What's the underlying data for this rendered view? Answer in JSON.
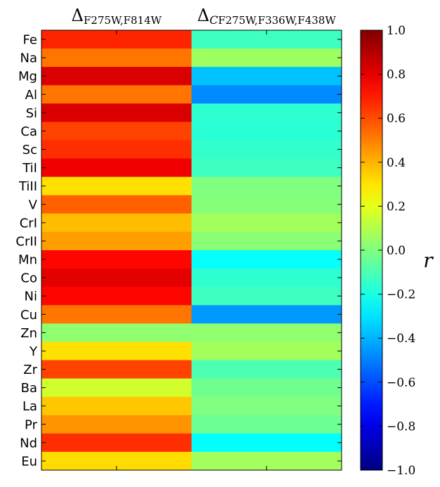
{
  "chart_data": {
    "type": "heatmap",
    "columns": [
      {
        "symbol": "Δ",
        "subscript": "F275W,F814W",
        "italic_prefix": ""
      },
      {
        "symbol": "Δ",
        "subscript": "F275W,F336W,F438W",
        "italic_prefix": "C"
      }
    ],
    "rows": [
      "Fe",
      "Na",
      "Mg",
      "Al",
      "Si",
      "Ca",
      "Sc",
      "TiI",
      "TiII",
      "V",
      "CrI",
      "CrII",
      "Mn",
      "Co",
      "Ni",
      "Cu",
      "Zn",
      "Y",
      "Zr",
      "Ba",
      "La",
      "Pr",
      "Nd",
      "Eu"
    ],
    "values": [
      [
        0.68,
        -0.13
      ],
      [
        0.52,
        0.06
      ],
      [
        0.82,
        -0.37
      ],
      [
        0.52,
        -0.48
      ],
      [
        0.82,
        -0.16
      ],
      [
        0.62,
        -0.17
      ],
      [
        0.66,
        -0.15
      ],
      [
        0.78,
        -0.13
      ],
      [
        0.31,
        0.0
      ],
      [
        0.56,
        0.01
      ],
      [
        0.38,
        0.07
      ],
      [
        0.44,
        0.02
      ],
      [
        0.74,
        -0.24
      ],
      [
        0.8,
        -0.16
      ],
      [
        0.74,
        -0.13
      ],
      [
        0.52,
        -0.45
      ],
      [
        0.03,
        0.03
      ],
      [
        0.31,
        0.07
      ],
      [
        0.62,
        -0.1
      ],
      [
        0.16,
        -0.03
      ],
      [
        0.36,
        0.0
      ],
      [
        0.46,
        -0.04
      ],
      [
        0.66,
        -0.25
      ],
      [
        0.32,
        0.07
      ]
    ],
    "colorbar": {
      "label": "r",
      "range": [
        -1.0,
        1.0
      ],
      "ticks": [
        1.0,
        0.8,
        0.6,
        0.4,
        0.2,
        0.0,
        -0.2,
        -0.4,
        -0.6,
        -0.8,
        -1.0
      ],
      "tick_labels": [
        "1.0",
        "0.8",
        "0.6",
        "0.4",
        "0.2",
        "0.0",
        "−0.2",
        "−0.4",
        "−0.6",
        "−0.8",
        "−1.0"
      ],
      "colormap": "jet"
    }
  }
}
